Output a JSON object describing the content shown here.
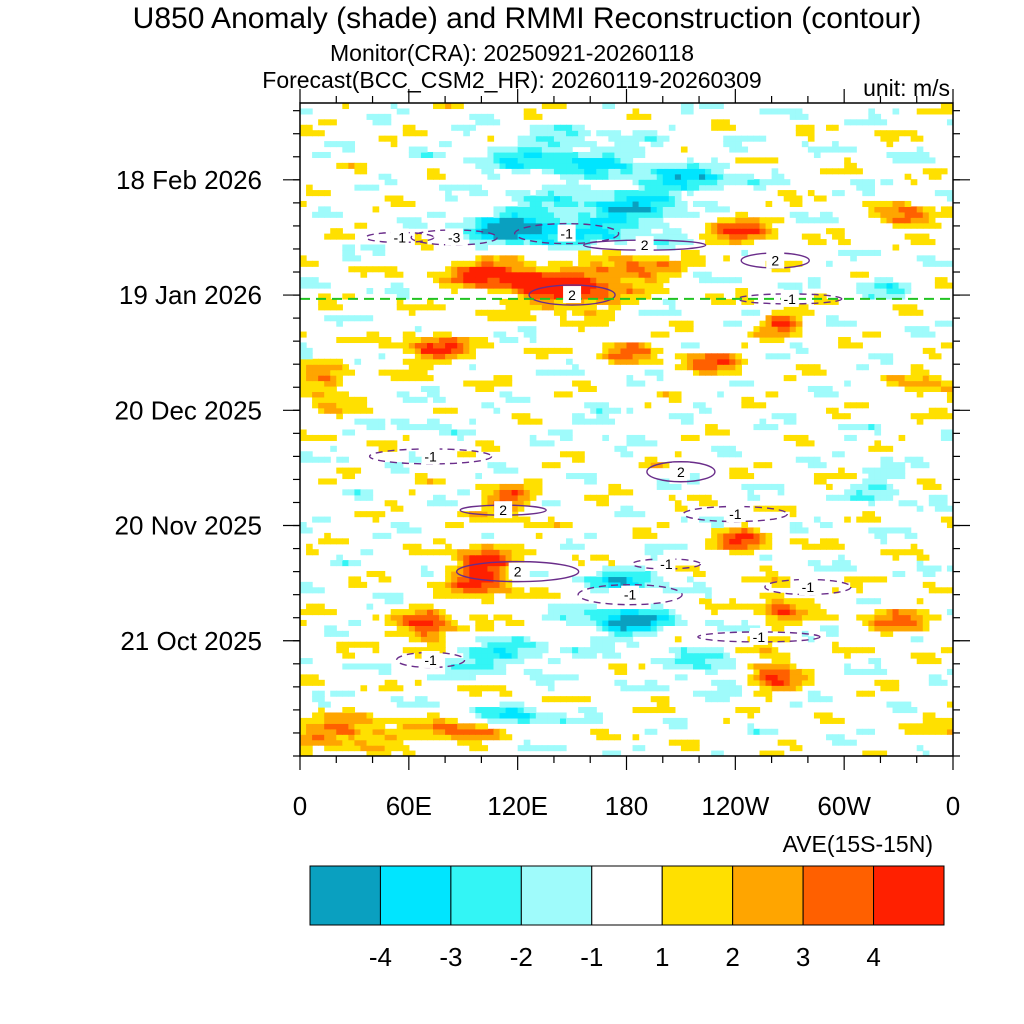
{
  "chart_data": {
    "type": "heatmap",
    "title": "U850 Anomaly (shade) and RMMI Reconstruction (contour)",
    "subtitle_monitor": "Monitor(CRA): 20250921-20260118",
    "subtitle_forecast": "Forecast(BCC_CSM2_HR): 20260119-20260309",
    "unit_label": "unit: m/s",
    "xlabel": "AVE(15S-15N)",
    "x_range": [
      0,
      360
    ],
    "x_ticks": [
      {
        "lon": 0,
        "label": "0"
      },
      {
        "lon": 60,
        "label": "60E"
      },
      {
        "lon": 120,
        "label": "120E"
      },
      {
        "lon": 180,
        "label": "180"
      },
      {
        "lon": 240,
        "label": "120W"
      },
      {
        "lon": 300,
        "label": "60W"
      },
      {
        "lon": 360,
        "label": "0"
      }
    ],
    "y_range_days": [
      0,
      170
    ],
    "y_range_dates": [
      "2025-09-21",
      "2026-03-09"
    ],
    "y_ticks": [
      {
        "day": 30,
        "label": "21 Oct 2025"
      },
      {
        "day": 60,
        "label": "20 Nov 2025"
      },
      {
        "day": 90,
        "label": "20 Dec 2025"
      },
      {
        "day": 120,
        "label": "19 Jan 2026"
      },
      {
        "day": 150,
        "label": "18 Feb 2026"
      }
    ],
    "forecast_start_day": 119,
    "shade_levels": [
      -4,
      -3,
      -2,
      -1,
      1,
      2,
      3,
      4
    ],
    "shade_colors": [
      "#0aa0c0",
      "#00e5ff",
      "#33f5f5",
      "#9ffbfb",
      "#ffffff",
      "#ffe000",
      "#ffa500",
      "#ff6000",
      "#ff2000"
    ],
    "colorbar_labels": [
      "-4",
      "-3",
      "-2",
      "-1",
      "1",
      "2",
      "3",
      "4"
    ],
    "anomaly_blobs": [
      {
        "lon": 110,
        "day": 126,
        "rlon": 30,
        "rday": 5,
        "value": 4.5
      },
      {
        "lon": 150,
        "day": 121,
        "rlon": 28,
        "rday": 5,
        "value": 4.8
      },
      {
        "lon": 185,
        "day": 127,
        "rlon": 22,
        "rday": 3,
        "value": 4.2
      },
      {
        "lon": 120,
        "day": 137,
        "rlon": 30,
        "rday": 6,
        "value": -4.5
      },
      {
        "lon": 180,
        "day": 141,
        "rlon": 35,
        "rday": 7,
        "value": -3.2
      },
      {
        "lon": 145,
        "day": 156,
        "rlon": 45,
        "rday": 6,
        "value": -2.8
      },
      {
        "lon": 240,
        "day": 137,
        "rlon": 22,
        "rday": 4,
        "value": 3.5
      },
      {
        "lon": 265,
        "day": 113,
        "rlon": 12,
        "rday": 3,
        "value": 4.2
      },
      {
        "lon": 335,
        "day": 140,
        "rlon": 15,
        "rday": 3,
        "value": 4.5
      },
      {
        "lon": 75,
        "day": 106,
        "rlon": 20,
        "rday": 4,
        "value": 3.8
      },
      {
        "lon": 180,
        "day": 106,
        "rlon": 15,
        "rday": 3,
        "value": 3.6
      },
      {
        "lon": 225,
        "day": 103,
        "rlon": 18,
        "rday": 3,
        "value": 3.4
      },
      {
        "lon": 15,
        "day": 96,
        "rlon": 12,
        "rday": 6,
        "value": 3.0
      },
      {
        "lon": 345,
        "day": 96,
        "rlon": 15,
        "rday": 4,
        "value": 2.5
      },
      {
        "lon": 70,
        "day": 87,
        "rlon": 12,
        "rday": 2,
        "value": -2.0
      },
      {
        "lon": 170,
        "day": 86,
        "rlon": 18,
        "rday": 3,
        "value": -1.8
      },
      {
        "lon": 115,
        "day": 66,
        "rlon": 15,
        "rday": 4,
        "value": 3.8
      },
      {
        "lon": 100,
        "day": 48,
        "rlon": 18,
        "rday": 7,
        "value": 4.8
      },
      {
        "lon": 70,
        "day": 33,
        "rlon": 15,
        "rday": 5,
        "value": 4.5
      },
      {
        "lon": 180,
        "day": 46,
        "rlon": 22,
        "rday": 3,
        "value": -3.0
      },
      {
        "lon": 180,
        "day": 35,
        "rlon": 25,
        "rday": 4,
        "value": -4.2
      },
      {
        "lon": 110,
        "day": 26,
        "rlon": 35,
        "rday": 4,
        "value": -2.8
      },
      {
        "lon": 225,
        "day": 23,
        "rlon": 22,
        "rday": 5,
        "value": -2.3
      },
      {
        "lon": 265,
        "day": 39,
        "rlon": 12,
        "rday": 5,
        "value": 3.4
      },
      {
        "lon": 260,
        "day": 22,
        "rlon": 15,
        "rday": 5,
        "value": 4.2
      },
      {
        "lon": 25,
        "day": 6,
        "rlon": 30,
        "rday": 4,
        "value": 3.6
      },
      {
        "lon": 90,
        "day": 6,
        "rlon": 20,
        "rday": 3,
        "value": 4.0
      },
      {
        "lon": 120,
        "day": 10,
        "rlon": 20,
        "rday": 3,
        "value": -3.0
      },
      {
        "lon": 245,
        "day": 56,
        "rlon": 15,
        "rday": 4,
        "value": 3.6
      },
      {
        "lon": 330,
        "day": 35,
        "rlon": 20,
        "rday": 4,
        "value": 2.8
      },
      {
        "lon": 320,
        "day": 70,
        "rlon": 15,
        "rday": 4,
        "value": -2.0
      },
      {
        "lon": 215,
        "day": 150,
        "rlon": 30,
        "rday": 4,
        "value": -2.8
      },
      {
        "lon": 320,
        "day": 123,
        "rlon": 15,
        "rday": 3,
        "value": -1.8
      }
    ],
    "contour_labels": [
      {
        "lon": 55,
        "day": 135,
        "text": "-1"
      },
      {
        "lon": 85,
        "day": 135,
        "text": "-3"
      },
      {
        "lon": 147,
        "day": 136,
        "text": "-1"
      },
      {
        "lon": 190,
        "day": 133,
        "text": "2"
      },
      {
        "lon": 262,
        "day": 129,
        "text": "2"
      },
      {
        "lon": 150,
        "day": 120,
        "text": "2"
      },
      {
        "lon": 270,
        "day": 119,
        "text": "-1"
      },
      {
        "lon": 72,
        "day": 78,
        "text": "-1"
      },
      {
        "lon": 210,
        "day": 74,
        "text": "2"
      },
      {
        "lon": 112,
        "day": 64,
        "text": "2"
      },
      {
        "lon": 240,
        "day": 63,
        "text": "-1"
      },
      {
        "lon": 120,
        "day": 48,
        "text": "2"
      },
      {
        "lon": 202,
        "day": 50,
        "text": "-1"
      },
      {
        "lon": 280,
        "day": 44,
        "text": "-1"
      },
      {
        "lon": 182,
        "day": 42,
        "text": "-1"
      },
      {
        "lon": 253,
        "day": 31,
        "text": "-1"
      },
      {
        "lon": 72,
        "day": 25,
        "text": "-1"
      }
    ]
  }
}
